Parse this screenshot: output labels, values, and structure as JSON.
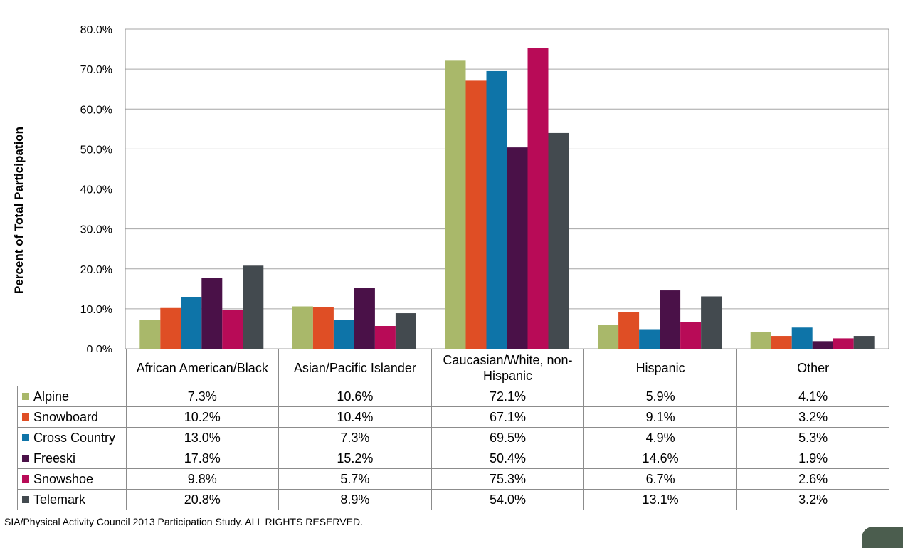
{
  "chart_data": {
    "type": "bar",
    "ylabel": "Percent of Total Participation",
    "xlabel": "",
    "ylim": [
      0,
      80
    ],
    "yticks": [
      "0.0%",
      "10.0%",
      "20.0%",
      "30.0%",
      "40.0%",
      "50.0%",
      "60.0%",
      "70.0%",
      "80.0%"
    ],
    "grid": true,
    "legend": "data table below chart",
    "categories": [
      "African American/Black",
      "Asian/Pacific Islander",
      "Caucasian/White, non-Hispanic",
      "Hispanic",
      "Other"
    ],
    "series": [
      {
        "name": "Alpine",
        "color": "#a9b86a",
        "values": [
          7.3,
          10.6,
          72.1,
          5.9,
          4.1
        ],
        "labels": [
          "7.3%",
          "10.6%",
          "72.1%",
          "5.9%",
          "4.1%"
        ]
      },
      {
        "name": "Snowboard",
        "color": "#df4e25",
        "values": [
          10.2,
          10.4,
          67.1,
          9.1,
          3.2
        ],
        "labels": [
          "10.2%",
          "10.4%",
          "67.1%",
          "9.1%",
          "3.2%"
        ]
      },
      {
        "name": "Cross Country",
        "color": "#0e74a8",
        "values": [
          13.0,
          7.3,
          69.5,
          4.9,
          5.3
        ],
        "labels": [
          "13.0%",
          "7.3%",
          "69.5%",
          "4.9%",
          "5.3%"
        ]
      },
      {
        "name": "Freeski",
        "color": "#4a1148",
        "values": [
          17.8,
          15.2,
          50.4,
          14.6,
          1.9
        ],
        "labels": [
          "17.8%",
          "15.2%",
          "50.4%",
          "14.6%",
          "1.9%"
        ]
      },
      {
        "name": "Snowshoe",
        "color": "#b80b57",
        "values": [
          9.8,
          5.7,
          75.3,
          6.7,
          2.6
        ],
        "labels": [
          "9.8%",
          "5.7%",
          "75.3%",
          "6.7%",
          "2.6%"
        ]
      },
      {
        "name": "Telemark",
        "color": "#434a4f",
        "values": [
          20.8,
          8.9,
          54.0,
          13.1,
          3.2
        ],
        "labels": [
          "20.8%",
          "8.9%",
          "54.0%",
          "13.1%",
          "3.2%"
        ]
      }
    ]
  },
  "footer": {
    "source": "SIA/Physical Activity Council 2013 Participation Study. ALL RIGHTS RESERVED."
  }
}
